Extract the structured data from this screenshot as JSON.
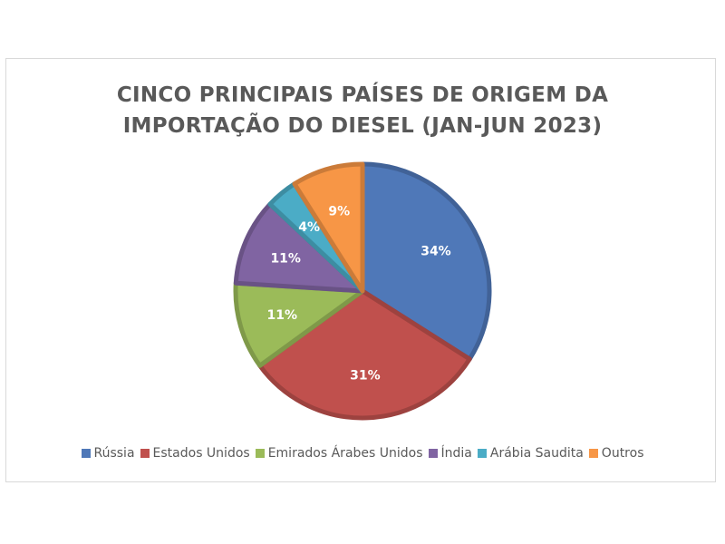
{
  "chart_data": {
    "type": "pie",
    "title_lines": [
      "CINCO PRINCIPAIS PAÍSES DE ORIGEM DA",
      "IMPORTAÇÃO DO DIESEL (JAN-JUN 2023)"
    ],
    "categories": [
      "Rússia",
      "Estados Unidos",
      "Emirados Árabes Unidos",
      "Índia",
      "Arábia Saudita",
      "Outros"
    ],
    "values": [
      34,
      31,
      11,
      11,
      4,
      9
    ],
    "labels": [
      "34%",
      "31%",
      "11%",
      "11%",
      "4%",
      "9%"
    ],
    "colors": [
      "#4f78b8",
      "#c0504d",
      "#9bbb59",
      "#8064a2",
      "#4bacc6",
      "#f79646"
    ],
    "legend_position": "bottom"
  }
}
